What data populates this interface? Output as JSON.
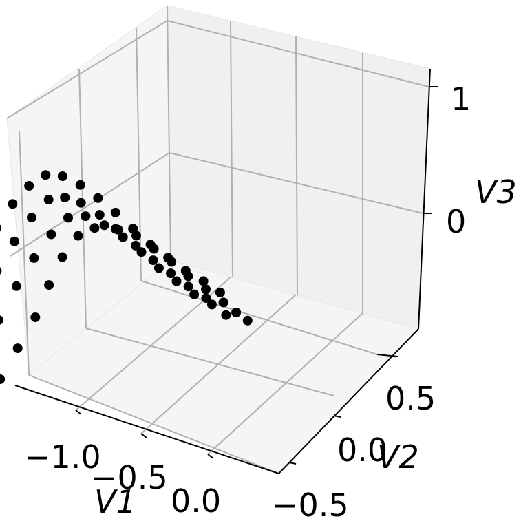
{
  "chart_data": {
    "type": "scatter",
    "projection": "3d",
    "xlabel": "V1",
    "ylabel": "V2",
    "zlabel": "V3",
    "x_ticks": [
      "−1.0",
      "−0.5",
      "0.0"
    ],
    "y_ticks": [
      "−0.5",
      "0.0",
      "0.5"
    ],
    "z_ticks": [
      "0",
      "1"
    ],
    "grid": true,
    "marker_color": "#000000",
    "series": [
      {
        "points": [
          [
            -0.95,
            -0.55,
            0.05
          ],
          [
            -0.9,
            -0.45,
            0.15
          ],
          [
            -0.85,
            -0.35,
            0.3
          ],
          [
            -0.8,
            -0.25,
            0.45
          ],
          [
            -0.78,
            -0.15,
            0.6
          ],
          [
            -0.76,
            -0.05,
            0.72
          ],
          [
            -0.72,
            0.05,
            0.8
          ],
          [
            -0.65,
            0.12,
            0.82
          ],
          [
            -0.55,
            0.2,
            0.78
          ],
          [
            -0.45,
            0.28,
            0.7
          ],
          [
            -0.35,
            0.33,
            0.6
          ],
          [
            -0.25,
            0.38,
            0.5
          ],
          [
            -0.15,
            0.42,
            0.4
          ],
          [
            -0.05,
            0.47,
            0.3
          ],
          [
            0.05,
            0.52,
            0.2
          ],
          [
            0.12,
            0.56,
            0.12
          ],
          [
            0.18,
            0.6,
            0.05
          ]
        ]
      },
      {
        "points": [
          [
            -1.05,
            -0.45,
            0.25
          ],
          [
            -1.0,
            -0.35,
            0.45
          ],
          [
            -0.95,
            -0.25,
            0.62
          ],
          [
            -0.9,
            -0.15,
            0.75
          ],
          [
            -0.85,
            -0.05,
            0.85
          ],
          [
            -0.8,
            0.05,
            0.9
          ],
          [
            -0.72,
            0.12,
            0.88
          ],
          [
            -0.62,
            0.18,
            0.8
          ],
          [
            -0.52,
            0.24,
            0.7
          ],
          [
            -0.42,
            0.3,
            0.58
          ],
          [
            -0.32,
            0.35,
            0.46
          ],
          [
            -0.22,
            0.4,
            0.36
          ],
          [
            -0.12,
            0.45,
            0.26
          ],
          [
            -0.02,
            0.5,
            0.18
          ],
          [
            0.06,
            0.54,
            0.1
          ]
        ]
      },
      {
        "points": [
          [
            -1.15,
            -0.35,
            0.5
          ],
          [
            -1.1,
            -0.25,
            0.68
          ],
          [
            -1.05,
            -0.15,
            0.82
          ],
          [
            -1.0,
            -0.05,
            0.92
          ],
          [
            -0.95,
            0.05,
            0.98
          ],
          [
            -0.88,
            0.12,
            0.96
          ],
          [
            -0.8,
            0.18,
            0.9
          ],
          [
            -0.7,
            0.24,
            0.8
          ],
          [
            -0.6,
            0.3,
            0.68
          ],
          [
            -0.5,
            0.35,
            0.56
          ],
          [
            -0.4,
            0.4,
            0.45
          ],
          [
            -0.3,
            0.45,
            0.35
          ],
          [
            -0.2,
            0.5,
            0.25
          ],
          [
            -0.1,
            0.55,
            0.16
          ]
        ]
      },
      {
        "points": [
          [
            -1.25,
            -0.2,
            0.7
          ],
          [
            -1.22,
            -0.1,
            0.82
          ],
          [
            -1.18,
            0.0,
            0.92
          ],
          [
            -1.12,
            0.08,
            1.0
          ],
          [
            -1.05,
            0.15,
            1.04
          ],
          [
            -0.96,
            0.2,
            1.02
          ],
          [
            -0.86,
            0.25,
            0.95
          ],
          [
            -0.76,
            0.3,
            0.85
          ],
          [
            -0.66,
            0.35,
            0.74
          ],
          [
            -0.56,
            0.4,
            0.62
          ],
          [
            -0.46,
            0.45,
            0.5
          ],
          [
            -0.36,
            0.5,
            0.4
          ],
          [
            -0.26,
            0.55,
            0.3
          ],
          [
            -0.16,
            0.6,
            0.22
          ],
          [
            -0.06,
            0.64,
            0.14
          ]
        ]
      }
    ]
  }
}
